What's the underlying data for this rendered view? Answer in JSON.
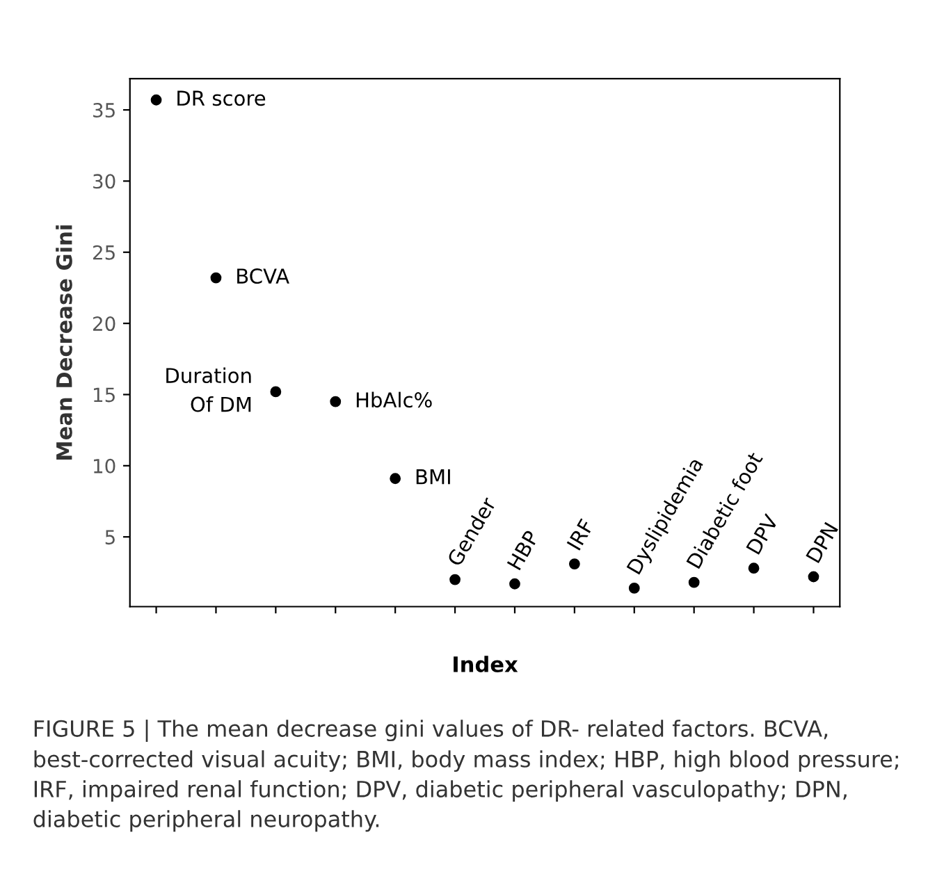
{
  "chart_data": {
    "type": "scatter",
    "xlabel": "Index",
    "ylabel": "Mean Decrease Gini",
    "categories": [
      null,
      null,
      null,
      null,
      null,
      null,
      null,
      null,
      null,
      null,
      null,
      null
    ],
    "values": [
      35.7,
      23.2,
      15.2,
      14.5,
      9.1,
      2.0,
      1.7,
      3.1,
      1.4,
      1.8,
      2.8,
      2.2
    ],
    "color": "#000000",
    "marker": "circle",
    "tick_labels": "y",
    "ylim": [
      0.1,
      37.2
    ],
    "yticks": [
      5,
      10,
      15,
      20,
      25,
      30,
      35
    ],
    "annotations": [
      "DR score",
      "BCVA",
      "Duration\nOf DM",
      "HbAlc%",
      "BMI",
      "Gender",
      "HBP",
      "IRF",
      "Dyslipidemia",
      "Diabetic foot",
      "DPV",
      "DPN",
      "FIGURE 5 | The mean decrease gini values of DR- related factors. BCVA, best-corrected visual acuity; BMI, body mass index; HBP, high blood pressure; IRF, impaired renal function; DPV, diabetic peripheral vasculopathy; DPN, diabetic peripheral neuropathy."
    ]
  }
}
